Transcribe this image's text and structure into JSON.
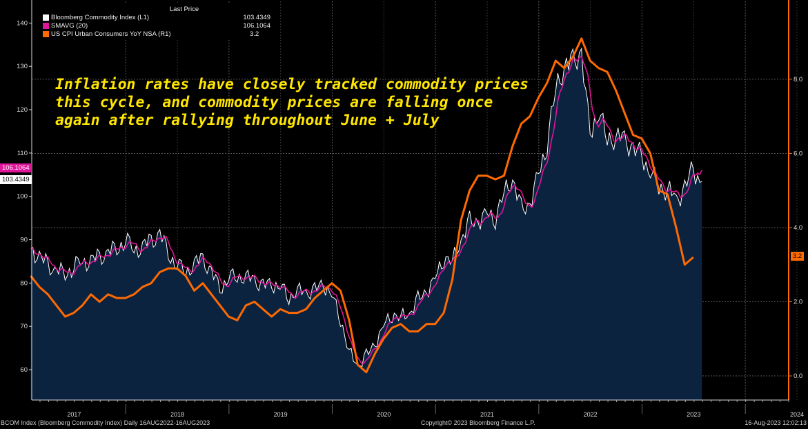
{
  "legend": {
    "header": "Last Price",
    "items": [
      {
        "name": "Bloomberg Commodity Index  (L1)",
        "value": "103.4349",
        "color": "#ffffff"
      },
      {
        "name": "SMAVG (20)",
        "value": "106.1064",
        "color": "#e0159a"
      },
      {
        "name": "US CPI Urban Consumers YoY NSA  (R1)",
        "value": "3.2",
        "color": "#ff6a00"
      }
    ]
  },
  "annotation": "Inflation rates have closely tracked commodity prices\nthis cycle, and commodity prices are falling once\nagain after rallying throughout June + July",
  "tags": {
    "sma": "106.1064",
    "bcom": "103.4349",
    "cpi": "3.2"
  },
  "footer": {
    "left": "BCOM Index (Bloomberg Commodity Index)  Daily 16AUG2022-16AUG2023",
    "center": "Copyright© 2023 Bloomberg Finance L.P.",
    "right": "16-Aug-2023 12:02:13"
  },
  "chart_data": {
    "type": "line",
    "x_range": [
      2017.09,
      2024.42
    ],
    "x_ticks": [
      "2017",
      "2018",
      "2019",
      "2020",
      "2021",
      "2022",
      "2023",
      "2024"
    ],
    "left_axis": {
      "ticks": [
        "60",
        "70",
        "80",
        "90",
        "100",
        "110",
        "120",
        "130",
        "140"
      ],
      "range": [
        53,
        145
      ]
    },
    "right_axis": {
      "ticks": [
        "0.0",
        "2.0",
        "4.0",
        "6.0",
        "8.0"
      ],
      "range": [
        -0.65,
        10.1
      ]
    },
    "series": [
      {
        "name": "Bloomberg Commodity Index",
        "axis": "left",
        "start": 2017.08,
        "step": "monthly",
        "values": [
          88,
          86,
          84,
          83,
          82,
          84,
          85,
          85,
          86,
          87,
          88,
          90,
          88,
          88,
          90,
          91,
          87,
          84,
          83,
          84,
          86,
          82,
          79,
          81,
          82,
          81,
          81,
          79,
          80,
          79,
          77,
          78,
          78,
          78,
          80,
          77,
          72,
          64,
          61,
          63,
          66,
          70,
          73,
          72,
          73,
          76,
          78,
          81,
          86,
          85,
          90,
          94,
          94,
          96,
          95,
          101,
          104,
          97,
          98,
          105,
          112,
          125,
          130,
          131,
          133,
          114,
          120,
          113,
          114,
          113,
          111,
          109,
          106,
          102,
          102,
          99,
          102,
          106,
          103.43
        ]
      },
      {
        "name": "SMAVG (20)",
        "axis": "left",
        "derived_from": "Bloomberg Commodity Index"
      },
      {
        "name": "US CPI Urban Consumers YoY NSA",
        "axis": "right",
        "start": 2017.08,
        "step": "monthly",
        "values": [
          2.7,
          2.4,
          2.2,
          1.9,
          1.6,
          1.7,
          1.9,
          2.2,
          2.0,
          2.2,
          2.1,
          2.1,
          2.2,
          2.4,
          2.5,
          2.8,
          2.9,
          2.9,
          2.7,
          2.3,
          2.5,
          2.2,
          1.9,
          1.6,
          1.5,
          1.9,
          2.0,
          1.8,
          1.6,
          1.8,
          1.7,
          1.7,
          1.8,
          2.1,
          2.3,
          2.5,
          2.3,
          1.5,
          0.3,
          0.1,
          0.6,
          1.0,
          1.3,
          1.4,
          1.2,
          1.2,
          1.4,
          1.4,
          1.7,
          2.6,
          4.2,
          5.0,
          5.4,
          5.4,
          5.3,
          5.4,
          6.2,
          6.8,
          7.0,
          7.5,
          7.9,
          8.5,
          8.3,
          8.6,
          9.1,
          8.5,
          8.3,
          8.2,
          7.7,
          7.1,
          6.5,
          6.4,
          6.0,
          5.0,
          4.9,
          4.0,
          3.0,
          3.2
        ]
      }
    ]
  }
}
